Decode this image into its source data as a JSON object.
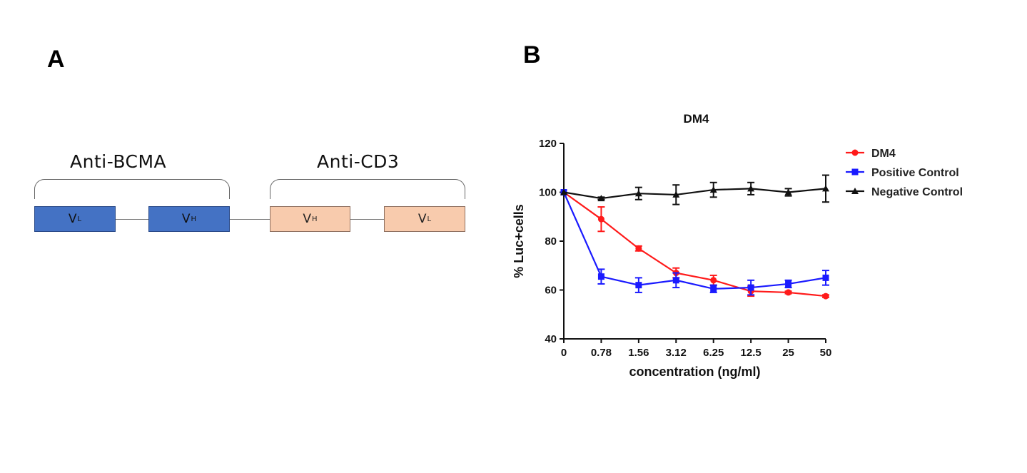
{
  "panel_a": {
    "letter": "A",
    "groups": [
      {
        "label": "Anti-BCMA"
      },
      {
        "label": "Anti-CD3"
      }
    ],
    "domains": [
      {
        "main": "V",
        "sub": "L",
        "color": "#4472c4"
      },
      {
        "main": "V",
        "sub": "H",
        "color": "#4472c4"
      },
      {
        "main": "V",
        "sub": "H",
        "color": "#f8cbad"
      },
      {
        "main": "V",
        "sub": "L",
        "color": "#f8cbad"
      }
    ]
  },
  "panel_b": {
    "letter": "B"
  },
  "chart_data": {
    "type": "line",
    "title": "DM4",
    "xlabel": "concentration (ng/ml)",
    "ylabel": "% Luc+cells",
    "categories": [
      "0",
      "0.78",
      "1.56",
      "3.12",
      "6.25",
      "12.5",
      "25",
      "50"
    ],
    "yticks": [
      "40",
      "60",
      "80",
      "100",
      "120"
    ],
    "ylim": [
      40,
      120
    ],
    "grid": false,
    "legend_position": "top-right",
    "series": [
      {
        "name": "DM4",
        "color": "#ff1a1a",
        "marker": "circle",
        "values": [
          100,
          89,
          77,
          67,
          64,
          59.5,
          59,
          57.5
        ],
        "errors": [
          0,
          5,
          1,
          2,
          2,
          2,
          0.5,
          0.5
        ]
      },
      {
        "name": "Positive Control",
        "color": "#1a1aff",
        "marker": "square",
        "values": [
          100,
          65.5,
          62,
          64,
          60.5,
          61,
          62.5,
          65
        ],
        "errors": [
          0,
          3,
          3,
          3,
          1.5,
          3,
          1.5,
          3
        ]
      },
      {
        "name": "Negative Control",
        "color": "#111111",
        "marker": "triangle",
        "values": [
          100,
          97.5,
          99.5,
          99,
          101,
          101.5,
          100,
          101.5
        ],
        "errors": [
          0,
          0.5,
          2.5,
          4,
          3,
          2.5,
          1.5,
          5.5
        ]
      }
    ]
  }
}
